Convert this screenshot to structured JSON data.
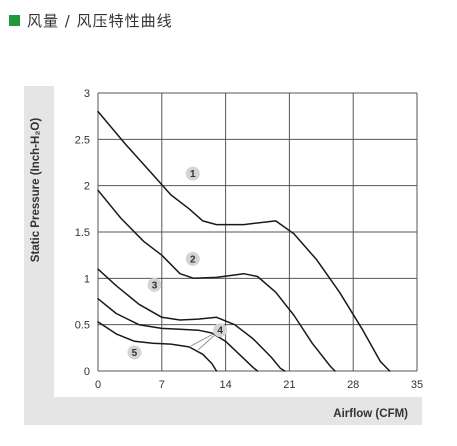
{
  "header": {
    "title": "风量 / 风压特性曲线",
    "accent_color": "#1e9a3c"
  },
  "chart_data": {
    "type": "line",
    "xlabel": "Airflow (CFM)",
    "ylabel": "Static Pressure (Inch-H₂O)",
    "xlim": [
      0,
      35
    ],
    "ylim": [
      0,
      3
    ],
    "xticks": [
      0,
      7,
      14,
      21,
      28,
      35
    ],
    "yticks": [
      0,
      0.5,
      1,
      1.5,
      2,
      2.5,
      3
    ],
    "ytick_labels": [
      "0",
      "0.5",
      "1",
      "1.5",
      "2",
      "2.5",
      "3"
    ],
    "grid": true,
    "series": [
      {
        "name": "1",
        "points": [
          [
            0,
            2.8
          ],
          [
            3,
            2.45
          ],
          [
            6,
            2.12
          ],
          [
            8,
            1.9
          ],
          [
            10,
            1.75
          ],
          [
            11.5,
            1.62
          ],
          [
            13,
            1.58
          ],
          [
            16,
            1.58
          ],
          [
            19.5,
            1.62
          ],
          [
            21.5,
            1.48
          ],
          [
            24,
            1.2
          ],
          [
            26.5,
            0.85
          ],
          [
            29,
            0.45
          ],
          [
            31,
            0.1
          ],
          [
            32,
            0.0
          ]
        ]
      },
      {
        "name": "2",
        "points": [
          [
            0,
            1.95
          ],
          [
            2.5,
            1.65
          ],
          [
            5,
            1.4
          ],
          [
            7,
            1.25
          ],
          [
            9,
            1.05
          ],
          [
            10.5,
            1.0
          ],
          [
            13,
            1.01
          ],
          [
            16,
            1.05
          ],
          [
            17.5,
            1.02
          ],
          [
            19.5,
            0.85
          ],
          [
            21.5,
            0.6
          ],
          [
            23.5,
            0.3
          ],
          [
            25.5,
            0.05
          ],
          [
            26,
            0.0
          ]
        ]
      },
      {
        "name": "3",
        "points": [
          [
            0,
            1.1
          ],
          [
            2,
            0.92
          ],
          [
            4.5,
            0.72
          ],
          [
            7,
            0.58
          ],
          [
            9,
            0.55
          ],
          [
            11,
            0.56
          ],
          [
            13,
            0.58
          ],
          [
            15,
            0.5
          ],
          [
            17,
            0.35
          ],
          [
            19,
            0.15
          ],
          [
            20,
            0.03
          ],
          [
            20.5,
            0.0
          ]
        ]
      },
      {
        "name": "4",
        "points": [
          [
            0,
            0.78
          ],
          [
            2,
            0.62
          ],
          [
            4.5,
            0.5
          ],
          [
            7,
            0.46
          ],
          [
            9,
            0.45
          ],
          [
            11,
            0.44
          ],
          [
            12.5,
            0.41
          ],
          [
            14,
            0.32
          ],
          [
            15.5,
            0.18
          ],
          [
            17,
            0.04
          ],
          [
            17.5,
            0.0
          ]
        ]
      },
      {
        "name": "5",
        "points": [
          [
            0,
            0.53
          ],
          [
            2,
            0.4
          ],
          [
            4,
            0.32
          ],
          [
            6,
            0.3
          ],
          [
            8,
            0.29
          ],
          [
            10,
            0.26
          ],
          [
            11.5,
            0.18
          ],
          [
            12.5,
            0.08
          ],
          [
            13,
            0.0
          ]
        ]
      }
    ],
    "markers": [
      {
        "label": "1",
        "x": 10.4,
        "y": 2.13
      },
      {
        "label": "2",
        "x": 10.4,
        "y": 1.21
      },
      {
        "label": "3",
        "x": 6.2,
        "y": 0.93
      },
      {
        "label": "4",
        "x": 13.4,
        "y": 0.44
      },
      {
        "label": "5",
        "x": 4.0,
        "y": 0.2
      }
    ],
    "marker_leader": {
      "from_label": "4",
      "to": [
        [
          10.2,
          0.27
        ],
        [
          11.0,
          0.23
        ]
      ]
    },
    "colors": {
      "curve": "#1a1a1a",
      "grid": "#555555",
      "marker_fill": "#d4d4d4",
      "panel_shade": "#e5e5e5"
    }
  }
}
